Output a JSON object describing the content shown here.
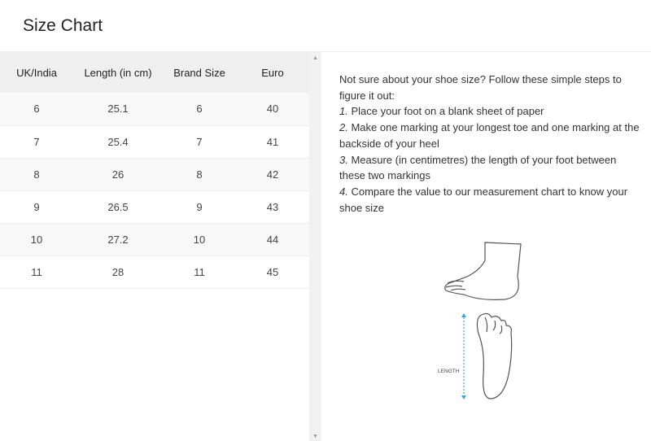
{
  "title": "Size Chart",
  "table": {
    "headers": [
      "UK/India",
      "Length (in cm)",
      "Brand Size",
      "Euro"
    ],
    "rows": [
      [
        "6",
        "25.1",
        "6",
        "40"
      ],
      [
        "7",
        "25.4",
        "7",
        "41"
      ],
      [
        "8",
        "26",
        "8",
        "42"
      ],
      [
        "9",
        "26.5",
        "9",
        "43"
      ],
      [
        "10",
        "27.2",
        "10",
        "44"
      ],
      [
        "11",
        "28",
        "11",
        "45"
      ]
    ]
  },
  "instructions": {
    "intro": "Not sure about your shoe size? Follow these simple steps to figure it out:",
    "steps": [
      {
        "n": "1.",
        "text": " Place your foot on a blank sheet of paper"
      },
      {
        "n": "2.",
        "text": " Make one marking at your longest toe and one marking at the backside of your heel"
      },
      {
        "n": "3.",
        "text": " Measure (in centimetres) the length of your foot between these two markings"
      },
      {
        "n": "4.",
        "text": " Compare the value to our measurement chart to know your shoe size"
      }
    ]
  },
  "illustration": {
    "label": "LENGTH"
  }
}
